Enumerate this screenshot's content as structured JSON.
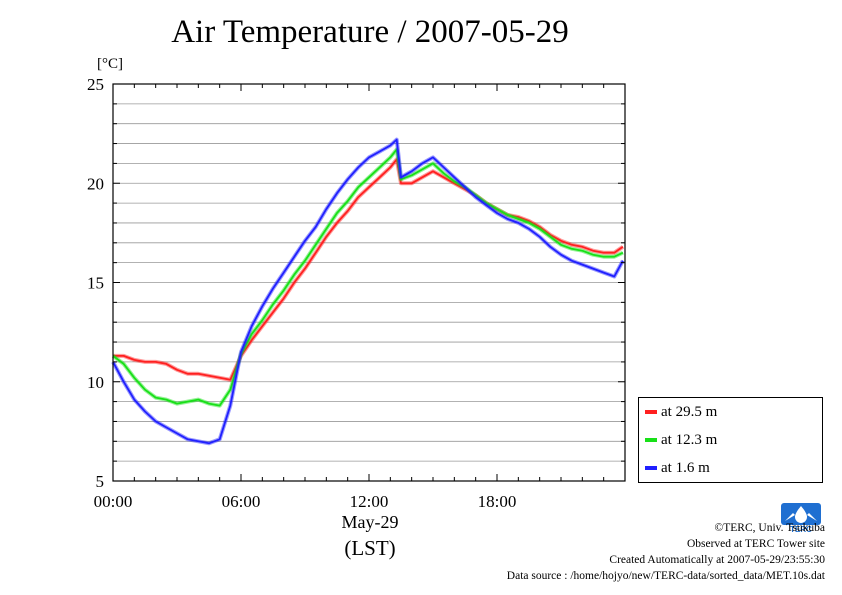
{
  "title": "Air Temperature / 2007-05-29",
  "unit_label": "[°C]",
  "x_caption": "May-29",
  "x_caption2": "(LST)",
  "legend": [
    {
      "label": "at 29.5 m",
      "color": "#ff2020"
    },
    {
      "label": "at 12.3 m",
      "color": "#18e018"
    },
    {
      "label": "at 1.6 m",
      "color": "#2020ff"
    }
  ],
  "credits": {
    "copyright": "©TERC, Univ. Tsukuba",
    "observed": "Observed at TERC Tower site",
    "created": "Created Automatically at 2007-05-29/23:55:30",
    "source": "Data source : /home/hojyo/new/TERC-data/sorted_data/MET.10s.dat"
  },
  "logo_text": "TERC",
  "chart_data": {
    "type": "line",
    "title": "Air Temperature / 2007-05-29",
    "xlabel": "May-29 (LST)",
    "ylabel": "[°C]",
    "xlim": [
      0,
      24
    ],
    "ylim": [
      5,
      25
    ],
    "x_ticks": [
      0,
      6,
      12,
      18
    ],
    "x_tick_labels": [
      "00:00",
      "06:00",
      "12:00",
      "18:00"
    ],
    "y_ticks": [
      5,
      10,
      15,
      20,
      25
    ],
    "y_tick_labels": [
      "5",
      "10",
      "15",
      "20",
      "25"
    ],
    "grid": true,
    "legend_position": "right",
    "x": [
      0,
      0.5,
      1,
      1.5,
      2,
      2.5,
      3,
      3.5,
      4,
      4.5,
      5,
      5.5,
      6,
      6.5,
      7,
      7.5,
      8,
      8.5,
      9,
      9.5,
      10,
      10.5,
      11,
      11.5,
      12,
      12.5,
      13,
      13.3,
      13.5,
      14,
      14.5,
      15,
      15.5,
      16,
      16.5,
      17,
      17.5,
      18,
      18.5,
      19,
      19.5,
      20,
      20.5,
      21,
      21.5,
      22,
      22.5,
      23,
      23.5,
      23.9
    ],
    "series": [
      {
        "name": "at 29.5 m",
        "color": "#ff2020",
        "values": [
          11.3,
          11.3,
          11.1,
          11.0,
          11.0,
          10.9,
          10.6,
          10.4,
          10.4,
          10.3,
          10.2,
          10.1,
          11.3,
          12.1,
          12.8,
          13.5,
          14.2,
          15.0,
          15.7,
          16.5,
          17.3,
          18.0,
          18.6,
          19.3,
          19.8,
          20.3,
          20.8,
          21.2,
          20.0,
          20.0,
          20.3,
          20.6,
          20.3,
          20.0,
          19.7,
          19.4,
          19.0,
          18.7,
          18.4,
          18.3,
          18.1,
          17.8,
          17.4,
          17.1,
          16.9,
          16.8,
          16.6,
          16.5,
          16.5,
          16.8
        ]
      },
      {
        "name": "at 12.3 m",
        "color": "#18e018",
        "values": [
          11.3,
          10.9,
          10.2,
          9.6,
          9.2,
          9.1,
          8.9,
          9.0,
          9.1,
          8.9,
          8.8,
          9.6,
          11.4,
          12.4,
          13.1,
          13.9,
          14.6,
          15.4,
          16.1,
          16.9,
          17.7,
          18.5,
          19.1,
          19.8,
          20.3,
          20.8,
          21.3,
          21.7,
          20.2,
          20.4,
          20.7,
          21.0,
          20.5,
          20.1,
          19.8,
          19.4,
          19.0,
          18.7,
          18.4,
          18.2,
          18.0,
          17.7,
          17.3,
          16.9,
          16.7,
          16.6,
          16.4,
          16.3,
          16.3,
          16.5
        ]
      },
      {
        "name": "at 1.6 m",
        "color": "#2020ff",
        "values": [
          11.0,
          10.0,
          9.1,
          8.5,
          8.0,
          7.7,
          7.4,
          7.1,
          7.0,
          6.9,
          7.1,
          8.8,
          11.5,
          12.8,
          13.8,
          14.7,
          15.5,
          16.3,
          17.1,
          17.8,
          18.7,
          19.5,
          20.2,
          20.8,
          21.3,
          21.6,
          21.9,
          22.2,
          20.3,
          20.6,
          21.0,
          21.3,
          20.8,
          20.3,
          19.8,
          19.3,
          18.9,
          18.5,
          18.2,
          18.0,
          17.7,
          17.3,
          16.8,
          16.4,
          16.1,
          15.9,
          15.7,
          15.5,
          15.3,
          16.1
        ]
      }
    ]
  }
}
